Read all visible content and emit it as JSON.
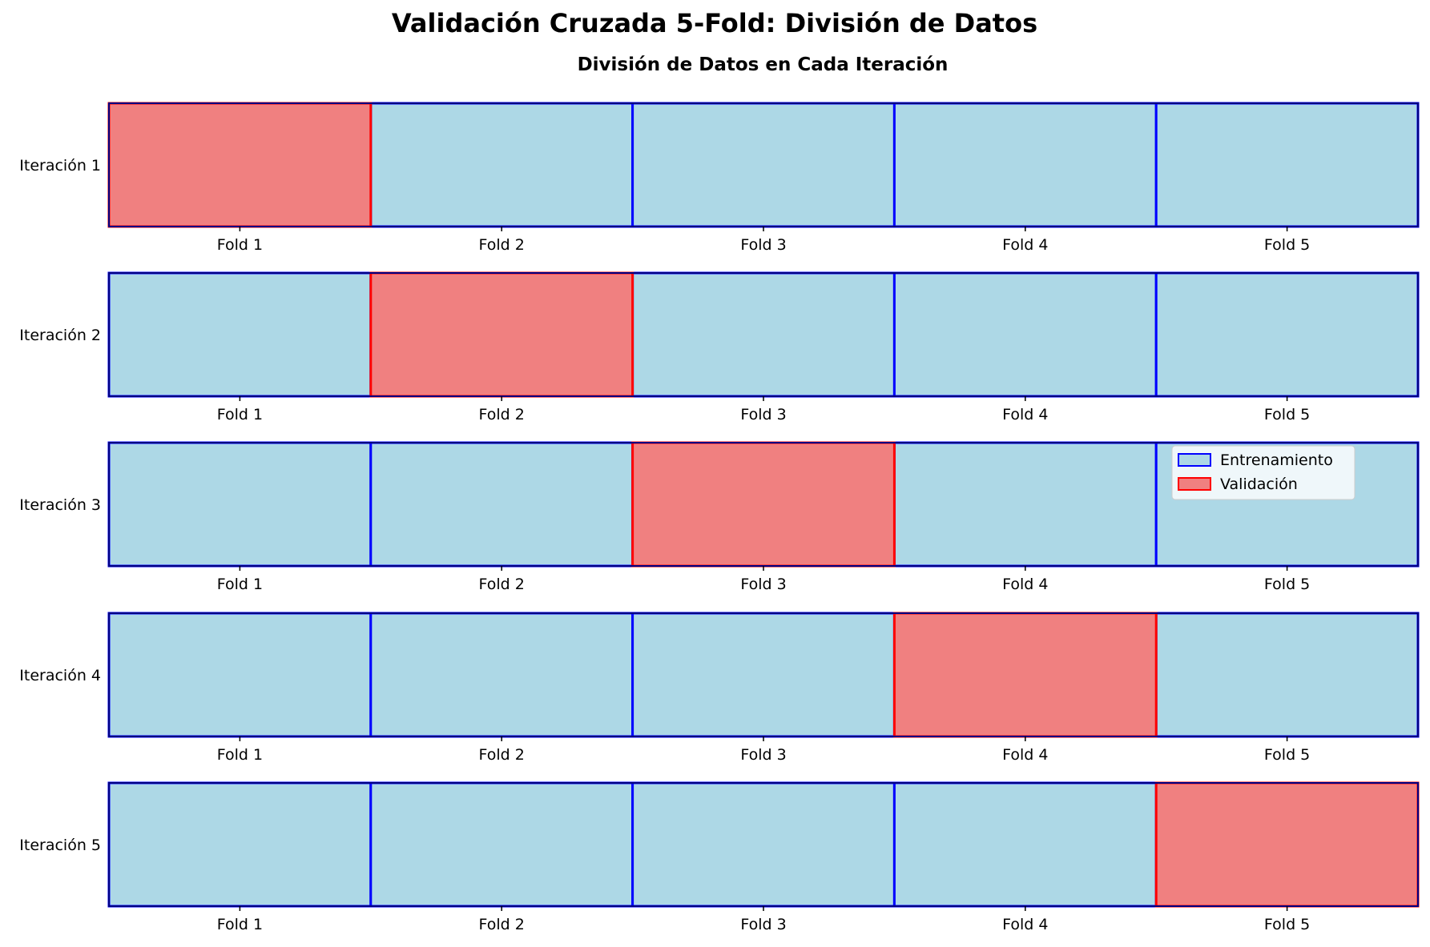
{
  "figure": {
    "title": "Validación Cruzada 5-Fold: División de Datos",
    "subtitle": "División de Datos en Cada Iteración"
  },
  "chart_data": {
    "type": "table",
    "rows": [
      "Iteración 1",
      "Iteración 2",
      "Iteración 3",
      "Iteración 4",
      "Iteración 5"
    ],
    "columns": [
      "Fold 1",
      "Fold 2",
      "Fold 3",
      "Fold 4",
      "Fold 5"
    ],
    "validation_fold_index": [
      0,
      1,
      2,
      3,
      4
    ],
    "legend": {
      "position": "upper-right of third row",
      "items": [
        {
          "key": "train",
          "label": "Entrenamiento",
          "fill": "#add8e6",
          "edge": "#0000ff"
        },
        {
          "key": "val",
          "label": "Validación",
          "fill": "#f08080",
          "edge": "#ff0000"
        }
      ]
    },
    "colors": {
      "train_fill": "#add8e6",
      "train_edge": "#0000ff",
      "val_fill": "#f08080",
      "val_edge": "#ff0000",
      "frame": "#000080"
    }
  }
}
